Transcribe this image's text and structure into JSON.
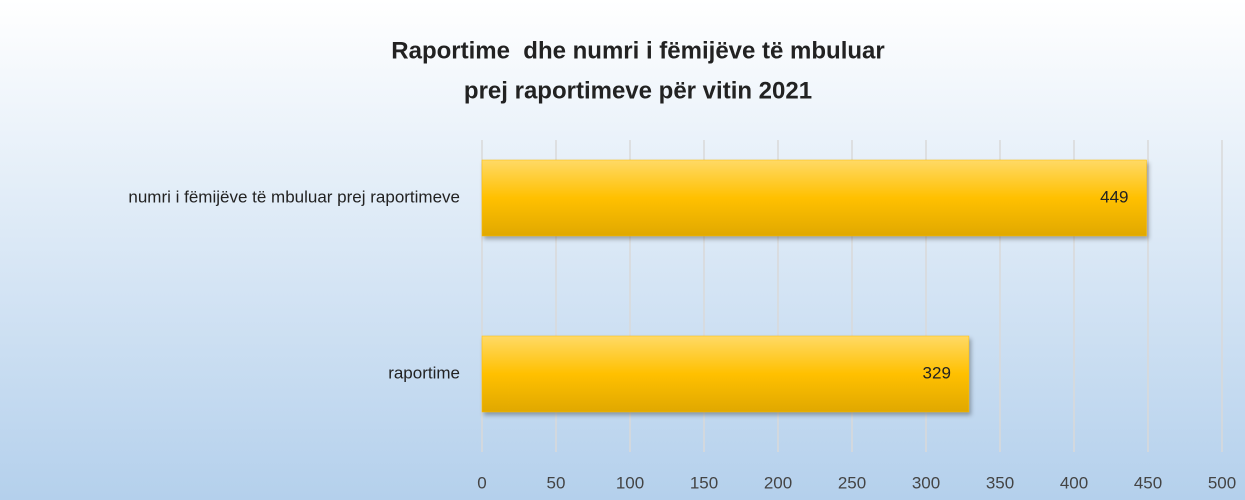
{
  "chart_data": {
    "type": "bar",
    "orientation": "horizontal",
    "title": [
      "Raportime  dhe numri i fëmijëve të mbuluar",
      "prej raportimeve për vitin 2021"
    ],
    "categories": [
      "numri i fëmijëve të mbuluar prej raportimeve",
      "raportime"
    ],
    "values": [
      449,
      329
    ],
    "color": "#ffc000",
    "xlim": [
      0,
      500
    ],
    "xticks": [
      0,
      50,
      100,
      150,
      200,
      250,
      300,
      350,
      400,
      450,
      500
    ],
    "grid": true
  }
}
